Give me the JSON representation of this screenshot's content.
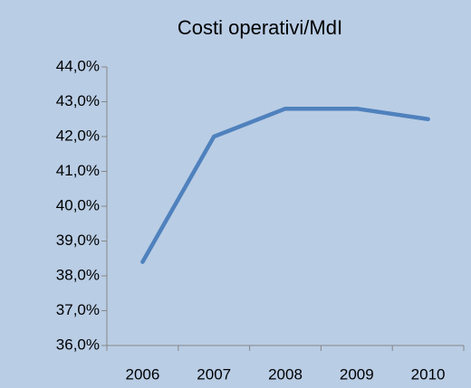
{
  "chart_data": {
    "type": "line",
    "title": "Costi operativi/MdI",
    "categories": [
      "2006",
      "2007",
      "2008",
      "2009",
      "2010"
    ],
    "values": [
      38.4,
      42.0,
      42.8,
      42.8,
      42.5
    ],
    "color": "#4f81bd",
    "ylim": [
      36,
      44
    ],
    "yticks": [
      {
        "value": 36,
        "label": "36,0%"
      },
      {
        "value": 37,
        "label": "37,0%"
      },
      {
        "value": 38,
        "label": "38,0%"
      },
      {
        "value": 39,
        "label": "39,0%"
      },
      {
        "value": 40,
        "label": "40,0%"
      },
      {
        "value": 41,
        "label": "41,0%"
      },
      {
        "value": 42,
        "label": "42,0%"
      },
      {
        "value": 43,
        "label": "43,0%"
      },
      {
        "value": 44,
        "label": "44,0%"
      }
    ],
    "grid": false
  }
}
